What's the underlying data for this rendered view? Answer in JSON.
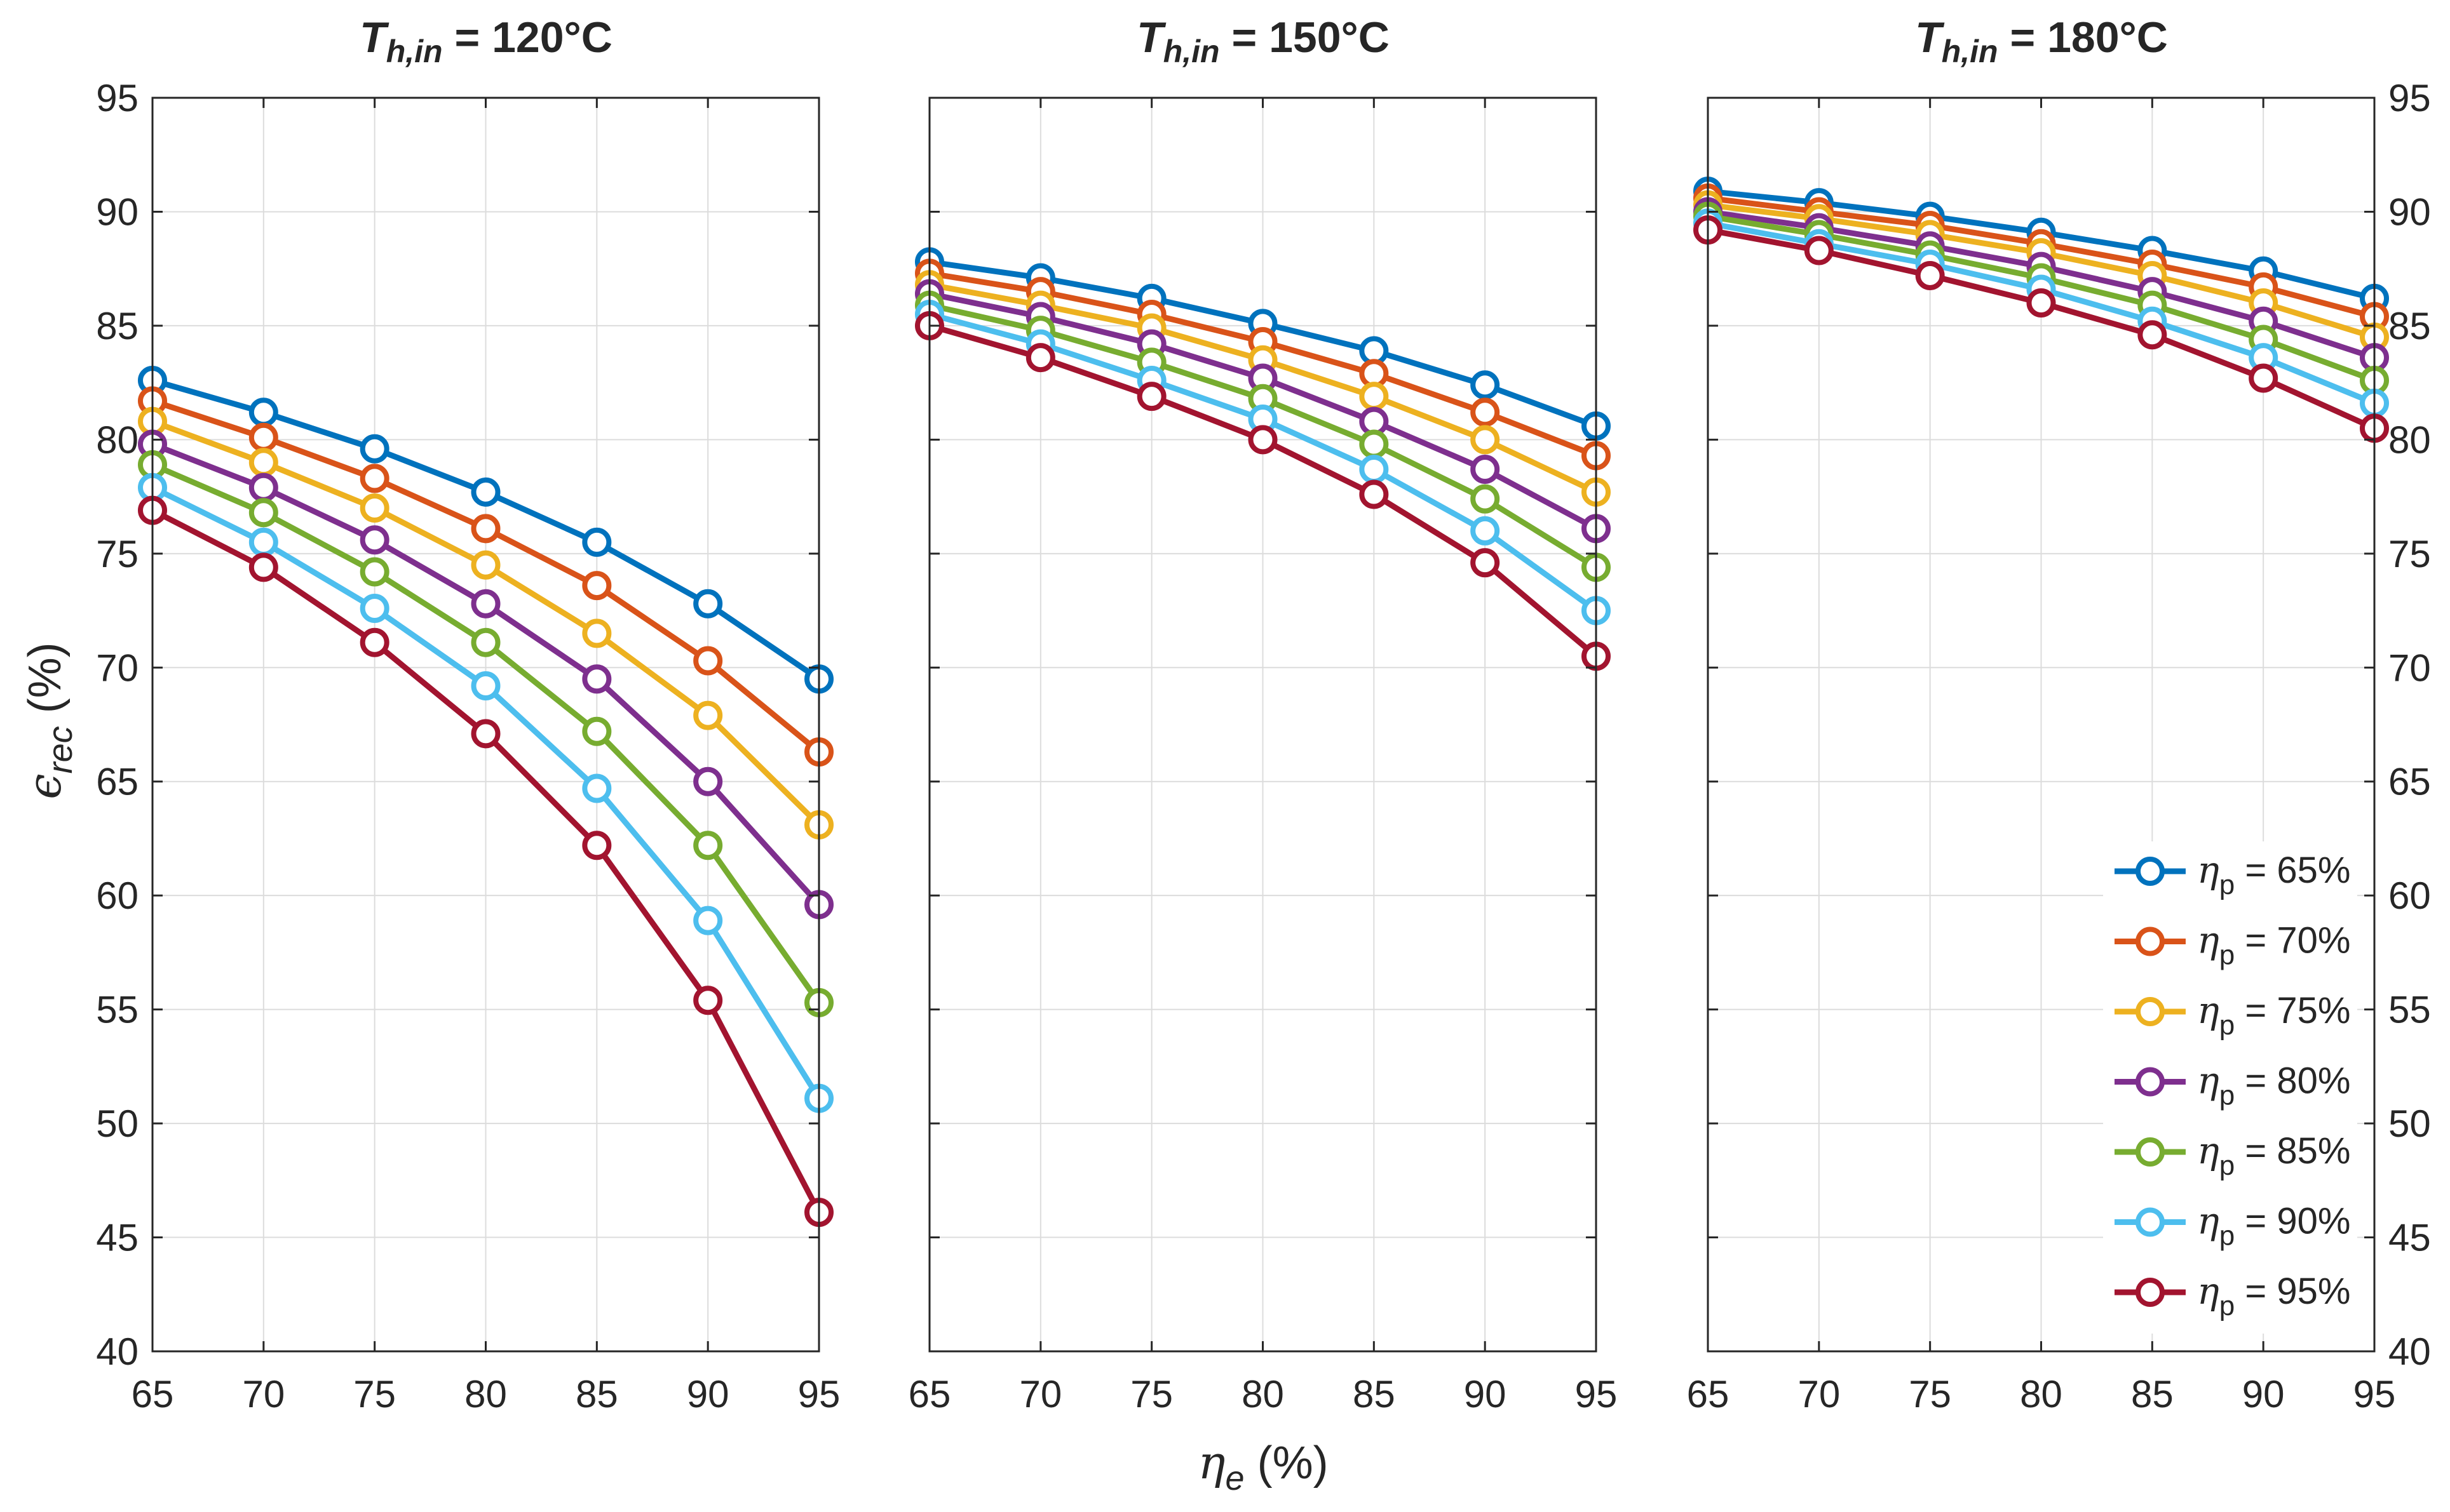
{
  "chart_data": {
    "type": "line",
    "x_axis": {
      "label_symbol": "η",
      "label_subscript": "e",
      "label_unit": " (%)",
      "xlim": [
        65,
        95
      ],
      "ticks": [
        65,
        70,
        75,
        80,
        85,
        90,
        95
      ],
      "tick_labels": [
        "65",
        "70",
        "75",
        "80",
        "85",
        "90",
        "95"
      ]
    },
    "y_axis": {
      "label_symbol": "ϵ",
      "label_subscript": "rec",
      "label_unit": " (%)",
      "ylim": [
        40,
        95
      ],
      "ticks": [
        40,
        45,
        50,
        55,
        60,
        65,
        70,
        75,
        80,
        85,
        90,
        95
      ],
      "tick_labels": [
        "40",
        "45",
        "50",
        "55",
        "60",
        "65",
        "70",
        "75",
        "80",
        "85",
        "90",
        "95"
      ]
    },
    "grid": true,
    "legend": {
      "placement": "bottom-right of third panel",
      "symbol": "η",
      "subscript": "p",
      "entries": [
        {
          "value": " = 65%"
        },
        {
          "value": " = 70%"
        },
        {
          "value": " = 75%"
        },
        {
          "value": " = 80%"
        },
        {
          "value": " = 85%"
        },
        {
          "value": " = 90%"
        },
        {
          "value": " = 95%"
        }
      ]
    },
    "series_meta": [
      {
        "name": "ηp = 65%",
        "color": "#0072BD"
      },
      {
        "name": "ηp = 70%",
        "color": "#D95319"
      },
      {
        "name": "ηp = 75%",
        "color": "#EDB120"
      },
      {
        "name": "ηp = 80%",
        "color": "#7E2F8E"
      },
      {
        "name": "ηp = 85%",
        "color": "#77AC30"
      },
      {
        "name": "ηp = 90%",
        "color": "#4DBEEE"
      },
      {
        "name": "ηp = 95%",
        "color": "#A2142F"
      }
    ],
    "panels": [
      {
        "title_main": "T",
        "title_sub": "h,in",
        "title_rest": " = 120°C",
        "x": [
          65,
          70,
          75,
          80,
          85,
          90,
          95
        ],
        "series": [
          {
            "name": "ηp = 65%",
            "values": [
              82.6,
              81.2,
              79.6,
              77.7,
              75.5,
              72.8,
              69.5
            ]
          },
          {
            "name": "ηp = 70%",
            "values": [
              81.7,
              80.1,
              78.3,
              76.1,
              73.6,
              70.3,
              66.3
            ]
          },
          {
            "name": "ηp = 75%",
            "values": [
              80.8,
              79.0,
              77.0,
              74.5,
              71.5,
              67.9,
              63.1
            ]
          },
          {
            "name": "ηp = 80%",
            "values": [
              79.8,
              77.9,
              75.6,
              72.8,
              69.5,
              65.0,
              59.6
            ]
          },
          {
            "name": "ηp = 85%",
            "values": [
              78.9,
              76.8,
              74.2,
              71.1,
              67.2,
              62.2,
              55.3
            ]
          },
          {
            "name": "ηp = 90%",
            "values": [
              77.9,
              75.5,
              72.6,
              69.2,
              64.7,
              58.9,
              51.1
            ]
          },
          {
            "name": "ηp = 95%",
            "values": [
              76.9,
              74.4,
              71.1,
              67.1,
              62.2,
              55.4,
              46.1
            ]
          }
        ]
      },
      {
        "title_main": "T",
        "title_sub": "h,in",
        "title_rest": " = 150°C",
        "x": [
          65,
          70,
          75,
          80,
          85,
          90,
          95
        ],
        "series": [
          {
            "name": "ηp = 65%",
            "values": [
              87.8,
              87.1,
              86.2,
              85.1,
              83.9,
              82.4,
              80.6
            ]
          },
          {
            "name": "ηp = 70%",
            "values": [
              87.3,
              86.5,
              85.5,
              84.3,
              82.9,
              81.2,
              79.3
            ]
          },
          {
            "name": "ηp = 75%",
            "values": [
              86.8,
              85.9,
              84.9,
              83.5,
              81.9,
              80.0,
              77.7
            ]
          },
          {
            "name": "ηp = 80%",
            "values": [
              86.4,
              85.4,
              84.2,
              82.7,
              80.8,
              78.7,
              76.1
            ]
          },
          {
            "name": "ηp = 85%",
            "values": [
              85.9,
              84.8,
              83.4,
              81.8,
              79.8,
              77.4,
              74.4
            ]
          },
          {
            "name": "ηp = 90%",
            "values": [
              85.5,
              84.2,
              82.6,
              80.9,
              78.7,
              76.0,
              72.5
            ]
          },
          {
            "name": "ηp = 95%",
            "values": [
              85.0,
              83.6,
              81.9,
              80.0,
              77.6,
              74.6,
              70.5
            ]
          }
        ]
      },
      {
        "title_main": "T",
        "title_sub": "h,in",
        "title_rest": " = 180°C",
        "x": [
          65,
          70,
          75,
          80,
          85,
          90,
          95
        ],
        "series": [
          {
            "name": "ηp = 65%",
            "values": [
              90.9,
              90.4,
              89.8,
              89.1,
              88.3,
              87.4,
              86.2
            ]
          },
          {
            "name": "ηp = 70%",
            "values": [
              90.6,
              90.0,
              89.4,
              88.6,
              87.7,
              86.7,
              85.4
            ]
          },
          {
            "name": "ηp = 75%",
            "values": [
              90.3,
              89.7,
              89.0,
              88.2,
              87.2,
              86.0,
              84.5
            ]
          },
          {
            "name": "ηp = 80%",
            "values": [
              90.0,
              89.3,
              88.5,
              87.6,
              86.5,
              85.2,
              83.6
            ]
          },
          {
            "name": "ηp = 85%",
            "values": [
              89.8,
              89.0,
              88.1,
              87.1,
              85.9,
              84.4,
              82.6
            ]
          },
          {
            "name": "ηp = 90%",
            "values": [
              89.5,
              88.6,
              87.7,
              86.6,
              85.2,
              83.6,
              81.6
            ]
          },
          {
            "name": "ηp = 95%",
            "values": [
              89.2,
              88.3,
              87.2,
              86.0,
              84.6,
              82.7,
              80.5
            ]
          }
        ]
      }
    ]
  }
}
